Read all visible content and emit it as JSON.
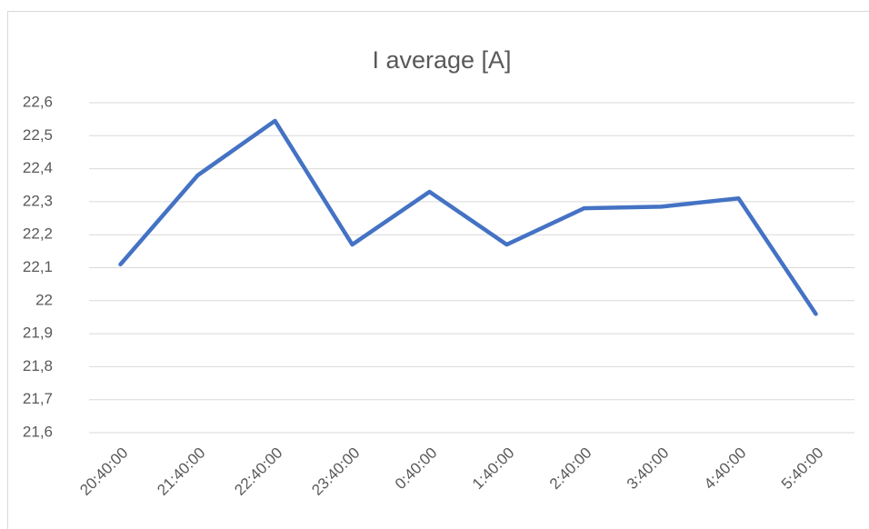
{
  "chart_data": {
    "type": "line",
    "title": "I average [A]",
    "categories": [
      "20:40:00",
      "21:40:00",
      "22:40:00",
      "23:40:00",
      "0:40:00",
      "1:40:00",
      "2:40:00",
      "3:40:00",
      "4:40:00",
      "5:40:00"
    ],
    "values": [
      22.11,
      22.38,
      22.545,
      22.17,
      22.33,
      22.17,
      22.28,
      22.285,
      22.31,
      21.96
    ],
    "color": "#4472c4",
    "ylim": [
      21.6,
      22.6
    ],
    "yticks": [
      {
        "value": 21.6,
        "label": "21,6"
      },
      {
        "value": 21.7,
        "label": "21,7"
      },
      {
        "value": 21.8,
        "label": "21,8"
      },
      {
        "value": 21.9,
        "label": "21,9"
      },
      22,
      {
        "value": 22.1,
        "label": "22,1"
      },
      {
        "value": 22.2,
        "label": "22,2"
      },
      {
        "value": 22.3,
        "label": "22,3"
      },
      {
        "value": 22.4,
        "label": "22,4"
      },
      {
        "value": 22.5,
        "label": "22,5"
      },
      {
        "value": 22.6,
        "label": "22,6"
      }
    ],
    "grid": true
  }
}
